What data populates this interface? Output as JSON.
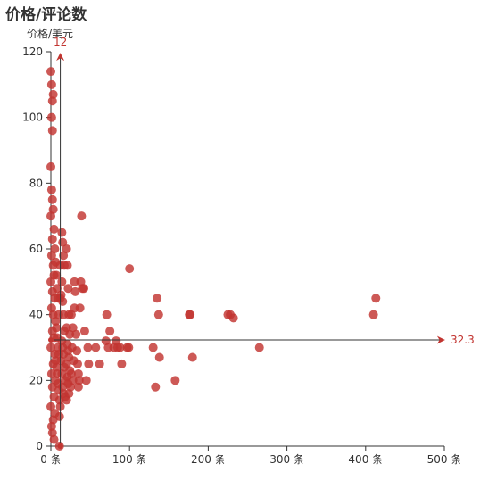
{
  "chart_data": {
    "type": "scatter",
    "title": "价格/评论数",
    "xlabel": "",
    "ylabel": "价格/美元",
    "x_unit": "条",
    "xlim": [
      0,
      500
    ],
    "ylim": [
      0,
      120
    ],
    "x_ticks": [
      0,
      100,
      200,
      300,
      400,
      500
    ],
    "y_ticks": [
      0,
      20,
      40,
      60,
      80,
      100,
      120
    ],
    "grid": false,
    "point_color": "#c23531",
    "mark_lines": {
      "x_value_label": "12",
      "x_value": 12,
      "y_value_label": "32.3",
      "y_value": 32.3
    },
    "points": [
      [
        0,
        114
      ],
      [
        1,
        110
      ],
      [
        2,
        105
      ],
      [
        3,
        107
      ],
      [
        1,
        100
      ],
      [
        2,
        96
      ],
      [
        0,
        85
      ],
      [
        1,
        78
      ],
      [
        2,
        75
      ],
      [
        3,
        72
      ],
      [
        0,
        70
      ],
      [
        4,
        66
      ],
      [
        2,
        63
      ],
      [
        5,
        60
      ],
      [
        1,
        58
      ],
      [
        3,
        55
      ],
      [
        4,
        52
      ],
      [
        0,
        50
      ],
      [
        2,
        47
      ],
      [
        5,
        45
      ],
      [
        1,
        42
      ],
      [
        3,
        40
      ],
      [
        6,
        38
      ],
      [
        2,
        35
      ],
      [
        4,
        33
      ],
      [
        0,
        30
      ],
      [
        5,
        28
      ],
      [
        3,
        25
      ],
      [
        1,
        22
      ],
      [
        6,
        20
      ],
      [
        2,
        18
      ],
      [
        4,
        15
      ],
      [
        0,
        12
      ],
      [
        5,
        10
      ],
      [
        3,
        8
      ],
      [
        1,
        6
      ],
      [
        2,
        4
      ],
      [
        4,
        2
      ],
      [
        6,
        56
      ],
      [
        7,
        52
      ],
      [
        8,
        48
      ],
      [
        9,
        45
      ],
      [
        10,
        40
      ],
      [
        7,
        36
      ],
      [
        8,
        33
      ],
      [
        9,
        30
      ],
      [
        10,
        28
      ],
      [
        6,
        26
      ],
      [
        7,
        24
      ],
      [
        8,
        22
      ],
      [
        9,
        19
      ],
      [
        10,
        17
      ],
      [
        11,
        14
      ],
      [
        12,
        12
      ],
      [
        11,
        9
      ],
      [
        12,
        55
      ],
      [
        12,
        45
      ],
      [
        14,
        65
      ],
      [
        15,
        62
      ],
      [
        16,
        58
      ],
      [
        17,
        55
      ],
      [
        14,
        50
      ],
      [
        13,
        46
      ],
      [
        15,
        44
      ],
      [
        16,
        40
      ],
      [
        17,
        35
      ],
      [
        14,
        32
      ],
      [
        15,
        30
      ],
      [
        16,
        28
      ],
      [
        13,
        26
      ],
      [
        17,
        24
      ],
      [
        14,
        22
      ],
      [
        18,
        20
      ],
      [
        15,
        18
      ],
      [
        16,
        16
      ],
      [
        18,
        15
      ],
      [
        20,
        60
      ],
      [
        21,
        55
      ],
      [
        22,
        48
      ],
      [
        23,
        40
      ],
      [
        20,
        36
      ],
      [
        24,
        34
      ],
      [
        21,
        31
      ],
      [
        22,
        29
      ],
      [
        23,
        27
      ],
      [
        20,
        25
      ],
      [
        24,
        23
      ],
      [
        21,
        21
      ],
      [
        22,
        19
      ],
      [
        25,
        18
      ],
      [
        23,
        16
      ],
      [
        20,
        14
      ],
      [
        11,
        0
      ],
      [
        26,
        40
      ],
      [
        28,
        36
      ],
      [
        27,
        30
      ],
      [
        29,
        26
      ],
      [
        26,
        22
      ],
      [
        28,
        20
      ],
      [
        30,
        50
      ],
      [
        31,
        47
      ],
      [
        30,
        42
      ],
      [
        32,
        34
      ],
      [
        33,
        29
      ],
      [
        34,
        25
      ],
      [
        35,
        22
      ],
      [
        36,
        20
      ],
      [
        35,
        18
      ],
      [
        37,
        42
      ],
      [
        38,
        50
      ],
      [
        39,
        70
      ],
      [
        40,
        48
      ],
      [
        42,
        48
      ],
      [
        43,
        35
      ],
      [
        45,
        20
      ],
      [
        47,
        30
      ],
      [
        48,
        25
      ],
      [
        57,
        30
      ],
      [
        62,
        25
      ],
      [
        70,
        32
      ],
      [
        71,
        40
      ],
      [
        73,
        30
      ],
      [
        75,
        35
      ],
      [
        80,
        30
      ],
      [
        83,
        32
      ],
      [
        85,
        30
      ],
      [
        88,
        30
      ],
      [
        90,
        25
      ],
      [
        97,
        30
      ],
      [
        99,
        30
      ],
      [
        100,
        54
      ],
      [
        130,
        30
      ],
      [
        133,
        18
      ],
      [
        135,
        45
      ],
      [
        137,
        40
      ],
      [
        138,
        27
      ],
      [
        158,
        20
      ],
      [
        176,
        40
      ],
      [
        177,
        40
      ],
      [
        180,
        27
      ],
      [
        225,
        40
      ],
      [
        228,
        40
      ],
      [
        232,
        39
      ],
      [
        265,
        30
      ],
      [
        410,
        40
      ],
      [
        413,
        45
      ]
    ]
  }
}
